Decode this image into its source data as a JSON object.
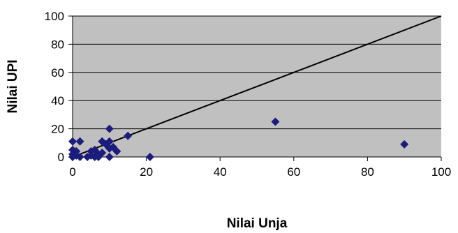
{
  "chart_data": {
    "type": "scatter",
    "xlabel": "Nilai Unja",
    "ylabel": "Nilai UPI",
    "xlim": [
      0,
      100
    ],
    "ylim": [
      0,
      100
    ],
    "x_ticks": [
      0,
      20,
      40,
      60,
      80,
      100
    ],
    "y_ticks": [
      0,
      20,
      40,
      60,
      80,
      100
    ],
    "grid": "horizontal",
    "background": "#c0c0c0",
    "reference_line": {
      "from": [
        0,
        0
      ],
      "to": [
        100,
        100
      ],
      "color": "#000000"
    },
    "series": [
      {
        "marker": "diamond",
        "color": "#1c1c7c",
        "points": [
          {
            "x": 0,
            "y": 11
          },
          {
            "x": 0,
            "y": 5
          },
          {
            "x": 0,
            "y": 2
          },
          {
            "x": 0,
            "y": 0
          },
          {
            "x": 1,
            "y": 1
          },
          {
            "x": 1,
            "y": 4
          },
          {
            "x": 2,
            "y": 11
          },
          {
            "x": 2,
            "y": 0
          },
          {
            "x": 4,
            "y": 0
          },
          {
            "x": 5,
            "y": 1
          },
          {
            "x": 5,
            "y": 4
          },
          {
            "x": 6,
            "y": 0
          },
          {
            "x": 6,
            "y": 5
          },
          {
            "x": 7,
            "y": 2
          },
          {
            "x": 7,
            "y": 0
          },
          {
            "x": 8,
            "y": 11
          },
          {
            "x": 8,
            "y": 3
          },
          {
            "x": 9,
            "y": 9
          },
          {
            "x": 10,
            "y": 20
          },
          {
            "x": 10,
            "y": 11
          },
          {
            "x": 10,
            "y": 6
          },
          {
            "x": 10,
            "y": 0
          },
          {
            "x": 11,
            "y": 7
          },
          {
            "x": 12,
            "y": 4
          },
          {
            "x": 15,
            "y": 15
          },
          {
            "x": 21,
            "y": 0
          },
          {
            "x": 55,
            "y": 25
          },
          {
            "x": 90,
            "y": 9
          }
        ]
      }
    ]
  }
}
